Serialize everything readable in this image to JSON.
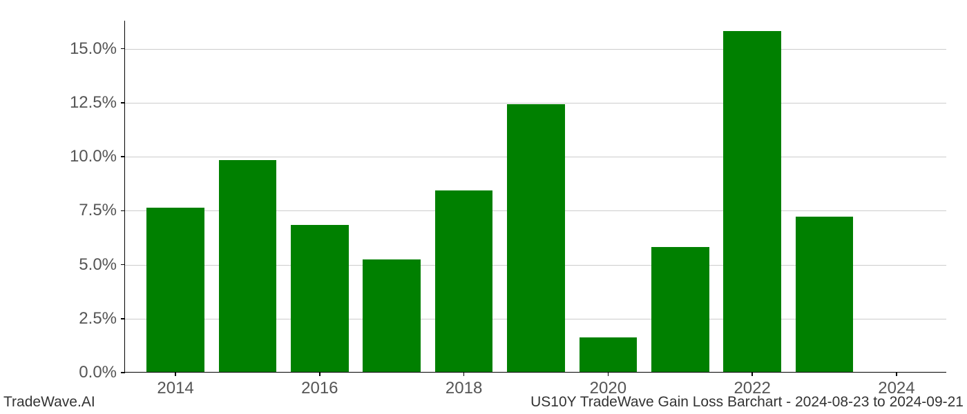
{
  "chart": {
    "type": "bar",
    "background_color": "#ffffff",
    "grid_color": "#cccccc",
    "axis_color": "#000000",
    "tick_label_color": "#555555",
    "tick_label_fontsize": 24,
    "footer_fontsize": 21,
    "footer_color": "#333333",
    "ylim_min": 0.0,
    "ylim_max": 16.3,
    "y_ticks": [
      {
        "value": 0.0,
        "label": "0.0%"
      },
      {
        "value": 2.5,
        "label": "2.5%"
      },
      {
        "value": 5.0,
        "label": "5.0%"
      },
      {
        "value": 7.5,
        "label": "7.5%"
      },
      {
        "value": 10.0,
        "label": "10.0%"
      },
      {
        "value": 12.5,
        "label": "12.5%"
      },
      {
        "value": 15.0,
        "label": "15.0%"
      }
    ],
    "x_ticks": [
      {
        "year": 2014,
        "label": "2014"
      },
      {
        "year": 2016,
        "label": "2016"
      },
      {
        "year": 2018,
        "label": "2018"
      },
      {
        "year": 2020,
        "label": "2020"
      },
      {
        "year": 2022,
        "label": "2022"
      },
      {
        "year": 2024,
        "label": "2024"
      }
    ],
    "x_min": 2013.3,
    "x_max": 2024.7,
    "bar_width_years": 0.8,
    "bar_color": "#008000",
    "bars": [
      {
        "year": 2014,
        "value": 7.6
      },
      {
        "year": 2015,
        "value": 9.8
      },
      {
        "year": 2016,
        "value": 6.8
      },
      {
        "year": 2017,
        "value": 5.2
      },
      {
        "year": 2018,
        "value": 8.4
      },
      {
        "year": 2019,
        "value": 12.4
      },
      {
        "year": 2020,
        "value": 1.6
      },
      {
        "year": 2021,
        "value": 5.8
      },
      {
        "year": 2022,
        "value": 15.8
      },
      {
        "year": 2023,
        "value": 7.2
      }
    ]
  },
  "footer": {
    "left": "TradeWave.AI",
    "right": "US10Y TradeWave Gain Loss Barchart - 2024-08-23 to 2024-09-21"
  }
}
